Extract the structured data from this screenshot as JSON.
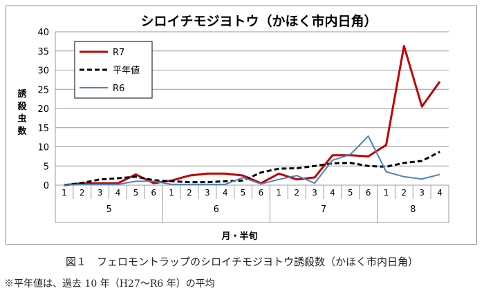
{
  "chart_data": {
    "type": "line",
    "title": "シロイチモジヨトウ（かほく市内日角）",
    "xlabel": "月・半旬",
    "ylabel": "誘殺虫数",
    "ylim": [
      0,
      40
    ],
    "yticks": [
      0,
      5,
      10,
      15,
      20,
      25,
      30,
      35,
      40
    ],
    "grid": true,
    "legend_position": "top-left",
    "months": [
      {
        "label": "5",
        "sub": [
          "1",
          "2",
          "3",
          "4",
          "5",
          "6"
        ]
      },
      {
        "label": "6",
        "sub": [
          "1",
          "2",
          "3",
          "4",
          "5",
          "6"
        ]
      },
      {
        "label": "7",
        "sub": [
          "1",
          "2",
          "3",
          "4",
          "5",
          "6"
        ]
      },
      {
        "label": "8",
        "sub": [
          "1",
          "2",
          "3",
          "4"
        ]
      }
    ],
    "series": [
      {
        "name": "R7",
        "color": "#c00000",
        "style": "solid",
        "values": [
          0,
          0.5,
          0.5,
          0.5,
          2.8,
          0.5,
          1.2,
          2.5,
          3.0,
          3.0,
          2.5,
          0.5,
          3.0,
          1.5,
          2.0,
          7.8,
          7.8,
          7.5,
          10.5,
          36.3,
          20.5,
          27.0
        ]
      },
      {
        "name": "平年値",
        "color": "#000000",
        "style": "dashed",
        "values": [
          0,
          0.6,
          1.5,
          1.8,
          2.2,
          1.3,
          1.0,
          0.8,
          0.8,
          1.0,
          1.2,
          3.3,
          4.3,
          4.4,
          5.0,
          5.7,
          5.8,
          5.0,
          4.8,
          5.8,
          6.3,
          8.7
        ]
      },
      {
        "name": "R6",
        "color": "#4f81bd",
        "style": "solid",
        "values": [
          0,
          0.2,
          0.2,
          0.2,
          1.0,
          1.0,
          0.2,
          0.2,
          0.2,
          0.2,
          2.0,
          0.3,
          1.5,
          2.5,
          0.5,
          6.5,
          8.0,
          12.8,
          3.5,
          2.2,
          1.6,
          2.8
        ]
      }
    ]
  },
  "caption": "図１　フェロモントラップのシロイチモジヨトウ誘殺数（かほく市内日角）",
  "note": "※平年値は、過去 10 年（H27～R6 年）の平均"
}
